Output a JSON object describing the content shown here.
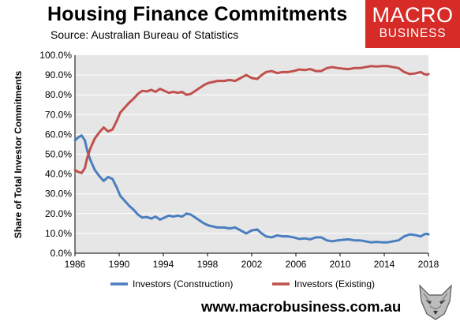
{
  "header": {
    "title": "Housing Finance Commitments",
    "subtitle": "Source: Australian Bureau of Statistics"
  },
  "brand": {
    "line1": "MACRO",
    "line2": "BUSINESS"
  },
  "footer": {
    "url": "www.macrobusiness.com.au"
  },
  "colors": {
    "construction": "#4a7ebf",
    "existing": "#c0504d",
    "plot_bg": "#e6e6e6",
    "brand_red": "#d62b27"
  },
  "chart_data": {
    "type": "line",
    "title": "Housing Finance Commitments",
    "ylabel": "Share of Total Investor Commitments",
    "xlabel": "",
    "xlim": [
      1986,
      2018
    ],
    "ylim": [
      0,
      100
    ],
    "x_ticks": [
      "1986",
      "1990",
      "1994",
      "1998",
      "2002",
      "2006",
      "2010",
      "2014",
      "2018"
    ],
    "y_ticks": [
      "0.0%",
      "10.0%",
      "20.0%",
      "30.0%",
      "40.0%",
      "50.0%",
      "60.0%",
      "70.0%",
      "80.0%",
      "90.0%",
      "100.0%"
    ],
    "legend_position": "bottom",
    "series": [
      {
        "name": "Investors (Construction)",
        "points": [
          [
            1986,
            57
          ],
          [
            1986.3,
            58.5
          ],
          [
            1986.6,
            59.5
          ],
          [
            1986.9,
            57
          ],
          [
            1987.1,
            52
          ],
          [
            1987.4,
            47
          ],
          [
            1987.8,
            42
          ],
          [
            1988.2,
            39
          ],
          [
            1988.6,
            36.5
          ],
          [
            1989,
            38.5
          ],
          [
            1989.4,
            37.5
          ],
          [
            1989.8,
            33
          ],
          [
            1990.1,
            29
          ],
          [
            1990.5,
            26.5
          ],
          [
            1990.9,
            24
          ],
          [
            1991.3,
            22
          ],
          [
            1991.7,
            19.5
          ],
          [
            1992.1,
            18
          ],
          [
            1992.5,
            18.3
          ],
          [
            1992.9,
            17.5
          ],
          [
            1993.3,
            18.5
          ],
          [
            1993.7,
            17
          ],
          [
            1994.1,
            18
          ],
          [
            1994.5,
            19
          ],
          [
            1994.9,
            18.5
          ],
          [
            1995.3,
            19
          ],
          [
            1995.7,
            18.5
          ],
          [
            1996.1,
            20
          ],
          [
            1996.5,
            19.5
          ],
          [
            1996.9,
            18
          ],
          [
            1997.3,
            16.5
          ],
          [
            1997.7,
            15
          ],
          [
            1998.1,
            14
          ],
          [
            1998.5,
            13.5
          ],
          [
            1998.9,
            13
          ],
          [
            1999.5,
            13
          ],
          [
            2000,
            12.5
          ],
          [
            2000.5,
            13
          ],
          [
            2001,
            11.5
          ],
          [
            2001.5,
            10
          ],
          [
            2002,
            11.5
          ],
          [
            2002.5,
            12
          ],
          [
            2002.9,
            10
          ],
          [
            2003.3,
            8.5
          ],
          [
            2003.8,
            8
          ],
          [
            2004.3,
            9
          ],
          [
            2004.8,
            8.5
          ],
          [
            2005.3,
            8.5
          ],
          [
            2005.8,
            8
          ],
          [
            2006.3,
            7.2
          ],
          [
            2006.8,
            7.5
          ],
          [
            2007.3,
            7
          ],
          [
            2007.8,
            8
          ],
          [
            2008.3,
            8
          ],
          [
            2008.8,
            6.5
          ],
          [
            2009.3,
            6
          ],
          [
            2009.8,
            6.5
          ],
          [
            2010.3,
            6.8
          ],
          [
            2010.8,
            7
          ],
          [
            2011.3,
            6.5
          ],
          [
            2011.8,
            6.5
          ],
          [
            2012.3,
            6
          ],
          [
            2012.8,
            5.5
          ],
          [
            2013.3,
            5.7
          ],
          [
            2013.8,
            5.5
          ],
          [
            2014.3,
            5.5
          ],
          [
            2014.8,
            6
          ],
          [
            2015.3,
            6.5
          ],
          [
            2015.8,
            8.5
          ],
          [
            2016.3,
            9.5
          ],
          [
            2016.8,
            9.2
          ],
          [
            2017.3,
            8.5
          ],
          [
            2017.6,
            9.5
          ],
          [
            2017.9,
            9.8
          ],
          [
            2018,
            9.5
          ]
        ]
      },
      {
        "name": "Investors (Existing)",
        "points": [
          [
            1986,
            42
          ],
          [
            1986.3,
            41
          ],
          [
            1986.6,
            40.5
          ],
          [
            1986.9,
            43
          ],
          [
            1987.1,
            48
          ],
          [
            1987.4,
            53
          ],
          [
            1987.8,
            58
          ],
          [
            1988.2,
            61
          ],
          [
            1988.6,
            63.5
          ],
          [
            1989,
            61.5
          ],
          [
            1989.4,
            62.5
          ],
          [
            1989.8,
            67
          ],
          [
            1990.1,
            71
          ],
          [
            1990.5,
            73.5
          ],
          [
            1990.9,
            76
          ],
          [
            1991.3,
            78
          ],
          [
            1991.7,
            80.5
          ],
          [
            1992.1,
            82
          ],
          [
            1992.5,
            81.7
          ],
          [
            1992.9,
            82.5
          ],
          [
            1993.3,
            81.5
          ],
          [
            1993.7,
            83
          ],
          [
            1994.1,
            82
          ],
          [
            1994.5,
            81
          ],
          [
            1994.9,
            81.5
          ],
          [
            1995.3,
            81
          ],
          [
            1995.7,
            81.5
          ],
          [
            1996.1,
            80
          ],
          [
            1996.5,
            80.5
          ],
          [
            1996.9,
            82
          ],
          [
            1997.3,
            83.5
          ],
          [
            1997.7,
            85
          ],
          [
            1998.1,
            86
          ],
          [
            1998.5,
            86.5
          ],
          [
            1998.9,
            87
          ],
          [
            1999.5,
            87
          ],
          [
            2000,
            87.5
          ],
          [
            2000.5,
            87
          ],
          [
            2001,
            88.5
          ],
          [
            2001.5,
            90
          ],
          [
            2002,
            88.5
          ],
          [
            2002.5,
            88
          ],
          [
            2002.9,
            90
          ],
          [
            2003.3,
            91.5
          ],
          [
            2003.8,
            92
          ],
          [
            2004.3,
            91
          ],
          [
            2004.8,
            91.5
          ],
          [
            2005.3,
            91.5
          ],
          [
            2005.8,
            92
          ],
          [
            2006.3,
            92.8
          ],
          [
            2006.8,
            92.5
          ],
          [
            2007.3,
            93
          ],
          [
            2007.8,
            92
          ],
          [
            2008.3,
            92
          ],
          [
            2008.8,
            93.5
          ],
          [
            2009.3,
            94
          ],
          [
            2009.8,
            93.5
          ],
          [
            2010.3,
            93.2
          ],
          [
            2010.8,
            93
          ],
          [
            2011.3,
            93.5
          ],
          [
            2011.8,
            93.5
          ],
          [
            2012.3,
            94
          ],
          [
            2012.8,
            94.5
          ],
          [
            2013.3,
            94.3
          ],
          [
            2013.8,
            94.5
          ],
          [
            2014.3,
            94.5
          ],
          [
            2014.8,
            94
          ],
          [
            2015.3,
            93.5
          ],
          [
            2015.8,
            91.5
          ],
          [
            2016.3,
            90.5
          ],
          [
            2016.8,
            90.8
          ],
          [
            2017.3,
            91.5
          ],
          [
            2017.6,
            90.5
          ],
          [
            2017.9,
            90.2
          ],
          [
            2018,
            90.5
          ]
        ]
      }
    ]
  }
}
